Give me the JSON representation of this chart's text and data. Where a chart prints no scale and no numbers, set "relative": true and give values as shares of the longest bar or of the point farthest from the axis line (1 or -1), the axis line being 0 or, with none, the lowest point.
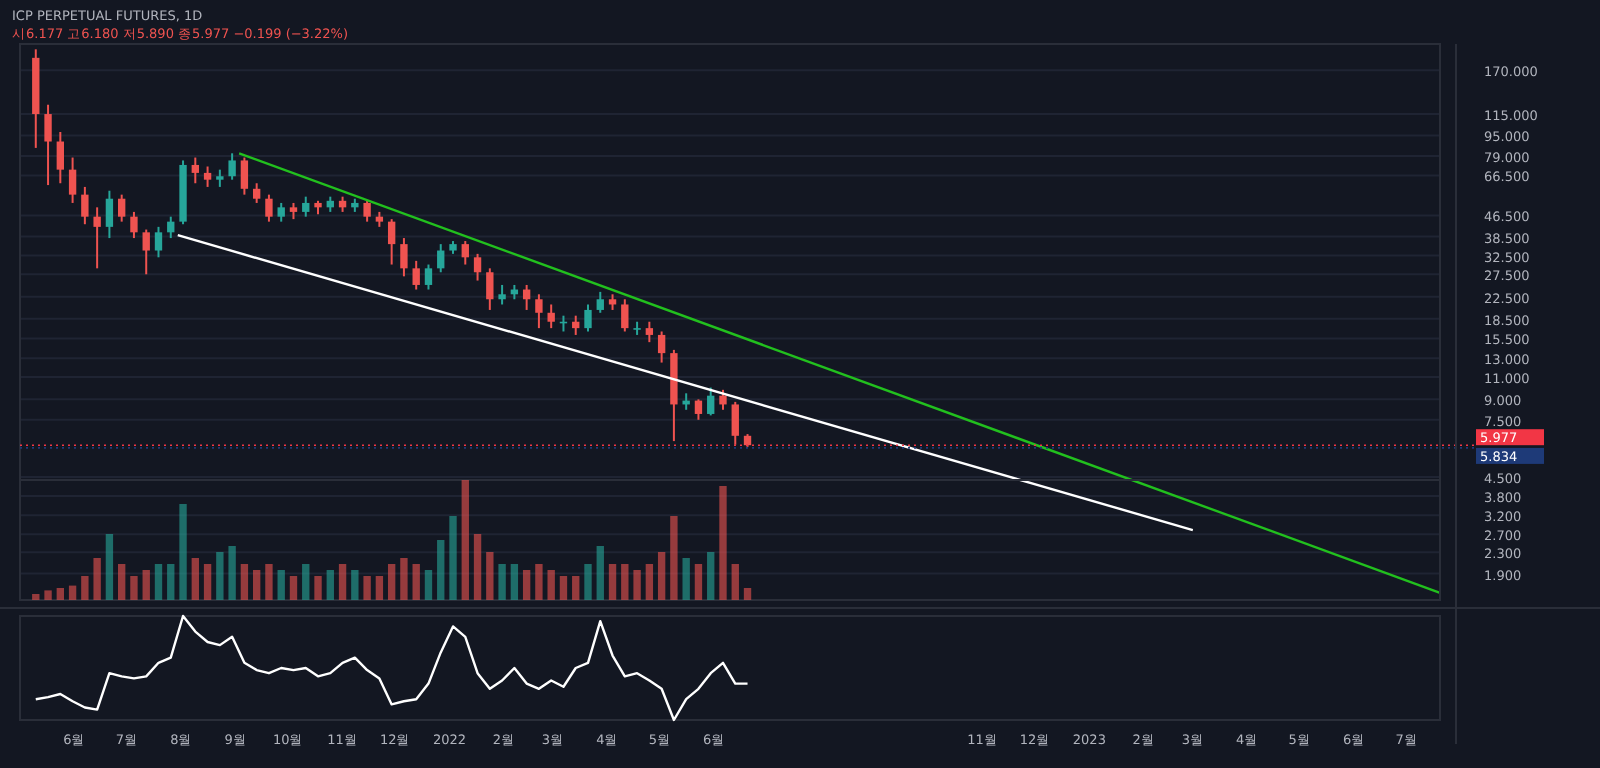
{
  "chart_data": [
    {
      "type": "candlestick",
      "title": "ICP PERPETUAL FUTURES, 1D",
      "annotations": [
        "시6.177 고6.180 저5.890 종5.977 −0.199 (−3.22%)"
      ],
      "x": [
        "2021-05-10",
        "2021-05-17",
        "2021-05-24",
        "2021-05-31",
        "2021-06-07",
        "2021-06-14",
        "2021-06-21",
        "2021-06-28",
        "2021-07-05",
        "2021-07-12",
        "2021-07-19",
        "2021-07-26",
        "2021-08-02",
        "2021-08-09",
        "2021-08-16",
        "2021-08-23",
        "2021-08-30",
        "2021-09-06",
        "2021-09-13",
        "2021-09-20",
        "2021-09-27",
        "2021-10-04",
        "2021-10-11",
        "2021-10-18",
        "2021-10-25",
        "2021-11-01",
        "2021-11-08",
        "2021-11-15",
        "2021-11-22",
        "2021-11-29",
        "2021-12-06",
        "2021-12-13",
        "2021-12-20",
        "2021-12-27",
        "2022-01-03",
        "2022-01-10",
        "2022-01-17",
        "2022-01-24",
        "2022-01-31",
        "2022-02-07",
        "2022-02-14",
        "2022-02-21",
        "2022-02-28",
        "2022-03-07",
        "2022-03-14",
        "2022-03-21",
        "2022-03-28",
        "2022-04-04",
        "2022-04-11",
        "2022-04-18",
        "2022-04-25",
        "2022-05-02",
        "2022-05-09",
        "2022-05-16",
        "2022-05-23",
        "2022-05-30",
        "2022-06-06",
        "2022-06-13",
        "2022-06-20"
      ],
      "ohlc": [
        [
          190,
          205,
          85,
          115
        ],
        [
          115,
          125,
          61,
          90
        ],
        [
          90,
          98,
          62,
          70
        ],
        [
          70,
          78,
          52,
          56
        ],
        [
          56,
          60,
          43,
          46
        ],
        [
          46,
          50,
          29,
          42
        ],
        [
          42,
          58,
          38,
          54
        ],
        [
          54,
          56,
          44,
          46
        ],
        [
          46,
          48,
          38,
          40
        ],
        [
          40,
          41,
          27.5,
          34
        ],
        [
          34,
          42,
          32,
          40
        ],
        [
          40,
          46,
          38,
          44
        ],
        [
          44,
          76,
          43,
          73
        ],
        [
          73,
          78,
          62,
          68
        ],
        [
          68,
          72,
          60,
          64
        ],
        [
          64,
          70,
          60,
          66
        ],
        [
          66,
          81,
          64,
          76
        ],
        [
          76,
          78,
          56,
          59
        ],
        [
          59,
          62,
          52,
          54
        ],
        [
          54,
          56,
          44,
          46
        ],
        [
          46,
          52,
          44,
          50
        ],
        [
          50,
          52,
          45,
          48
        ],
        [
          48,
          55,
          46,
          52
        ],
        [
          52,
          53,
          47,
          50
        ],
        [
          50,
          55,
          48,
          53
        ],
        [
          53,
          55,
          48,
          50
        ],
        [
          50,
          54,
          48,
          52
        ],
        [
          52,
          53,
          44,
          46
        ],
        [
          46,
          48,
          42,
          44
        ],
        [
          44,
          45,
          30,
          36
        ],
        [
          36,
          38,
          27,
          29
        ],
        [
          29,
          31,
          24,
          25
        ],
        [
          25,
          30,
          24,
          29
        ],
        [
          29,
          36,
          28,
          34
        ],
        [
          34,
          37,
          33,
          36
        ],
        [
          36,
          37,
          30,
          32
        ],
        [
          32,
          33,
          26,
          28
        ],
        [
          28,
          29,
          20,
          22
        ],
        [
          22,
          25,
          21,
          23
        ],
        [
          23,
          25,
          22,
          24
        ],
        [
          24,
          25,
          20,
          22
        ],
        [
          22,
          23,
          17,
          19.5
        ],
        [
          19.5,
          21,
          17,
          18
        ],
        [
          18,
          19,
          16.5,
          18
        ],
        [
          18,
          19,
          16,
          17
        ],
        [
          17,
          21,
          16.5,
          20
        ],
        [
          20,
          23.5,
          19.5,
          22
        ],
        [
          22,
          23,
          20,
          21
        ],
        [
          21,
          22,
          16.5,
          17
        ],
        [
          17,
          18,
          16,
          17
        ],
        [
          17,
          18,
          15,
          16
        ],
        [
          16,
          16.5,
          12.5,
          13.6
        ],
        [
          13.6,
          14,
          6.2,
          8.6
        ],
        [
          8.6,
          9.5,
          8.2,
          8.9
        ],
        [
          8.9,
          9,
          7.5,
          7.9
        ],
        [
          7.9,
          10,
          7.8,
          9.3
        ],
        [
          9.3,
          9.8,
          8.2,
          8.6
        ],
        [
          8.6,
          8.8,
          6,
          6.5
        ],
        [
          6.5,
          6.6,
          5.89,
          5.977
        ]
      ],
      "series": [
        {
          "type": "line",
          "color": "#22c01e",
          "x": [
            "2021-09-03",
            "2023-07-20"
          ],
          "values": [
            81,
            1.6
          ]
        },
        {
          "type": "line",
          "color": "#ffffff",
          "x": [
            "2021-07-30",
            "2023-03-01"
          ],
          "values": [
            39,
            2.8
          ]
        }
      ],
      "ref_lines": [
        {
          "axis": "y",
          "value": 5.977,
          "label": "5.977",
          "color": "#f23645"
        },
        {
          "axis": "y",
          "value": 5.834,
          "label": "5.834",
          "color": "#1e3a78"
        }
      ],
      "log": true,
      "ylim": [
        1.5,
        215
      ],
      "yticks": [
        {
          "value": 170,
          "label": "170.000"
        },
        {
          "value": 115,
          "label": "115.000"
        },
        {
          "value": 95,
          "label": "95.000"
        },
        {
          "value": 79,
          "label": "79.000"
        },
        {
          "value": 66.5,
          "label": "66.500"
        },
        {
          "value": 46.5,
          "label": "46.500"
        },
        {
          "value": 38.5,
          "label": "38.500"
        },
        {
          "value": 32.5,
          "label": "32.500"
        },
        {
          "value": 27.5,
          "label": "27.500"
        },
        {
          "value": 22.5,
          "label": "22.500"
        },
        {
          "value": 18.5,
          "label": "18.500"
        },
        {
          "value": 15.5,
          "label": "15.500"
        },
        {
          "value": 13,
          "label": "13.000"
        },
        {
          "value": 11,
          "label": "11.000"
        },
        {
          "value": 9,
          "label": "9.000"
        },
        {
          "value": 7.5,
          "label": "7.500"
        },
        {
          "value": 4.5,
          "label": "4.500"
        },
        {
          "value": 3.8,
          "label": "3.800"
        },
        {
          "value": 3.2,
          "label": "3.200"
        },
        {
          "value": 2.7,
          "label": "2.700"
        },
        {
          "value": 2.3,
          "label": "2.300"
        },
        {
          "value": 1.9,
          "label": "1.900"
        }
      ],
      "xlim": [
        "2021-05-01",
        "2023-07-20"
      ],
      "tick_labels": "y",
      "grid": true
    },
    {
      "type": "bar",
      "relative": true,
      "tick_labels": false,
      "x": [
        "2021-05-10",
        "2021-05-17",
        "2021-05-24",
        "2021-05-31",
        "2021-06-07",
        "2021-06-14",
        "2021-06-21",
        "2021-06-28",
        "2021-07-05",
        "2021-07-12",
        "2021-07-19",
        "2021-07-26",
        "2021-08-02",
        "2021-08-09",
        "2021-08-16",
        "2021-08-23",
        "2021-08-30",
        "2021-09-06",
        "2021-09-13",
        "2021-09-20",
        "2021-09-27",
        "2021-10-04",
        "2021-10-11",
        "2021-10-18",
        "2021-10-25",
        "2021-11-01",
        "2021-11-08",
        "2021-11-15",
        "2021-11-22",
        "2021-11-29",
        "2021-12-06",
        "2021-12-13",
        "2021-12-20",
        "2021-12-27",
        "2022-01-03",
        "2022-01-10",
        "2022-01-17",
        "2022-01-24",
        "2022-01-31",
        "2022-02-07",
        "2022-02-14",
        "2022-02-21",
        "2022-02-28",
        "2022-03-07",
        "2022-03-14",
        "2022-03-21",
        "2022-03-28",
        "2022-04-04",
        "2022-04-11",
        "2022-04-18",
        "2022-04-25",
        "2022-05-02",
        "2022-05-09",
        "2022-05-16",
        "2022-05-23",
        "2022-05-30",
        "2022-06-06",
        "2022-06-13",
        "2022-06-20"
      ],
      "values": [
        0.05,
        0.08,
        0.1,
        0.12,
        0.2,
        0.35,
        0.55,
        0.3,
        0.2,
        0.25,
        0.3,
        0.3,
        0.8,
        0.35,
        0.3,
        0.4,
        0.45,
        0.3,
        0.25,
        0.3,
        0.25,
        0.2,
        0.3,
        0.2,
        0.25,
        0.3,
        0.25,
        0.2,
        0.2,
        0.3,
        0.35,
        0.3,
        0.25,
        0.5,
        0.7,
        1.0,
        0.55,
        0.4,
        0.3,
        0.3,
        0.25,
        0.3,
        0.25,
        0.2,
        0.2,
        0.3,
        0.45,
        0.3,
        0.3,
        0.25,
        0.3,
        0.4,
        0.7,
        0.35,
        0.3,
        0.4,
        0.95,
        0.3,
        0.1
      ],
      "colors": [
        "#ef5350",
        "#ef5350",
        "#ef5350",
        "#ef5350",
        "#ef5350",
        "#ef5350",
        "#26a69a",
        "#ef5350",
        "#ef5350",
        "#ef5350",
        "#26a69a",
        "#26a69a",
        "#26a69a",
        "#ef5350",
        "#ef5350",
        "#26a69a",
        "#26a69a",
        "#ef5350",
        "#ef5350",
        "#ef5350",
        "#26a69a",
        "#ef5350",
        "#26a69a",
        "#ef5350",
        "#26a69a",
        "#ef5350",
        "#26a69a",
        "#ef5350",
        "#ef5350",
        "#ef5350",
        "#ef5350",
        "#ef5350",
        "#26a69a",
        "#26a69a",
        "#26a69a",
        "#ef5350",
        "#ef5350",
        "#ef5350",
        "#26a69a",
        "#26a69a",
        "#ef5350",
        "#ef5350",
        "#ef5350",
        "#ef5350",
        "#ef5350",
        "#26a69a",
        "#26a69a",
        "#ef5350",
        "#ef5350",
        "#ef5350",
        "#ef5350",
        "#ef5350",
        "#ef5350",
        "#26a69a",
        "#ef5350",
        "#26a69a",
        "#ef5350",
        "#ef5350",
        "#ef5350"
      ],
      "xlim": [
        "2021-05-01",
        "2023-07-20"
      ]
    },
    {
      "type": "line",
      "relative": true,
      "tick_labels": "x",
      "series": [
        {
          "color": "#ffffff",
          "x": [
            "2021-05-10",
            "2021-05-17",
            "2021-05-24",
            "2021-05-31",
            "2021-06-07",
            "2021-06-14",
            "2021-06-21",
            "2021-06-28",
            "2021-07-05",
            "2021-07-12",
            "2021-07-19",
            "2021-07-26",
            "2021-08-02",
            "2021-08-09",
            "2021-08-16",
            "2021-08-23",
            "2021-08-30",
            "2021-09-06",
            "2021-09-13",
            "2021-09-20",
            "2021-09-27",
            "2021-10-04",
            "2021-10-11",
            "2021-10-18",
            "2021-10-25",
            "2021-11-01",
            "2021-11-08",
            "2021-11-15",
            "2021-11-22",
            "2021-11-29",
            "2021-12-06",
            "2021-12-13",
            "2021-12-20",
            "2021-12-27",
            "2022-01-03",
            "2022-01-10",
            "2022-01-17",
            "2022-01-24",
            "2022-01-31",
            "2022-02-07",
            "2022-02-14",
            "2022-02-21",
            "2022-02-28",
            "2022-03-07",
            "2022-03-14",
            "2022-03-21",
            "2022-03-28",
            "2022-04-04",
            "2022-04-11",
            "2022-04-18",
            "2022-04-25",
            "2022-05-02",
            "2022-05-09",
            "2022-05-16",
            "2022-05-23",
            "2022-05-30",
            "2022-06-06",
            "2022-06-13",
            "2022-06-20"
          ],
          "values": [
            0.2,
            0.22,
            0.25,
            0.18,
            0.12,
            0.1,
            0.45,
            0.42,
            0.4,
            0.42,
            0.55,
            0.6,
            1.0,
            0.85,
            0.75,
            0.72,
            0.8,
            0.55,
            0.48,
            0.45,
            0.5,
            0.48,
            0.5,
            0.42,
            0.45,
            0.55,
            0.6,
            0.48,
            0.4,
            0.15,
            0.18,
            0.2,
            0.35,
            0.65,
            0.9,
            0.8,
            0.45,
            0.3,
            0.38,
            0.5,
            0.35,
            0.3,
            0.38,
            0.32,
            0.5,
            0.55,
            0.95,
            0.62,
            0.42,
            0.45,
            0.38,
            0.3,
            0,
            0.2,
            0.3,
            0.45,
            0.55,
            0.35,
            0.35
          ]
        }
      ],
      "xlim": [
        "2021-05-01",
        "2023-07-20"
      ],
      "xticks": [
        {
          "value": "2021-06-01",
          "label": "6월"
        },
        {
          "value": "2021-07-01",
          "label": "7월"
        },
        {
          "value": "2021-08-01",
          "label": "8월"
        },
        {
          "value": "2021-09-01",
          "label": "9월"
        },
        {
          "value": "2021-10-01",
          "label": "10월"
        },
        {
          "value": "2021-11-01",
          "label": "11월"
        },
        {
          "value": "2021-12-01",
          "label": "12월"
        },
        {
          "value": "2022-01-01",
          "label": "2022"
        },
        {
          "value": "2022-02-01",
          "label": "2월"
        },
        {
          "value": "2022-03-01",
          "label": "3월"
        },
        {
          "value": "2022-04-01",
          "label": "4월"
        },
        {
          "value": "2022-05-01",
          "label": "5월"
        },
        {
          "value": "2022-06-01",
          "label": "6월"
        },
        {
          "value": "2022-11-01",
          "label": "11월"
        },
        {
          "value": "2022-12-01",
          "label": "12월"
        },
        {
          "value": "2023-01-01",
          "label": "2023"
        },
        {
          "value": "2023-02-01",
          "label": "2월"
        },
        {
          "value": "2023-03-01",
          "label": "3월"
        },
        {
          "value": "2023-04-01",
          "label": "4월"
        },
        {
          "value": "2023-05-01",
          "label": "5월"
        },
        {
          "value": "2023-06-01",
          "label": "6월"
        },
        {
          "value": "2023-07-01",
          "label": "7월"
        }
      ]
    }
  ]
}
